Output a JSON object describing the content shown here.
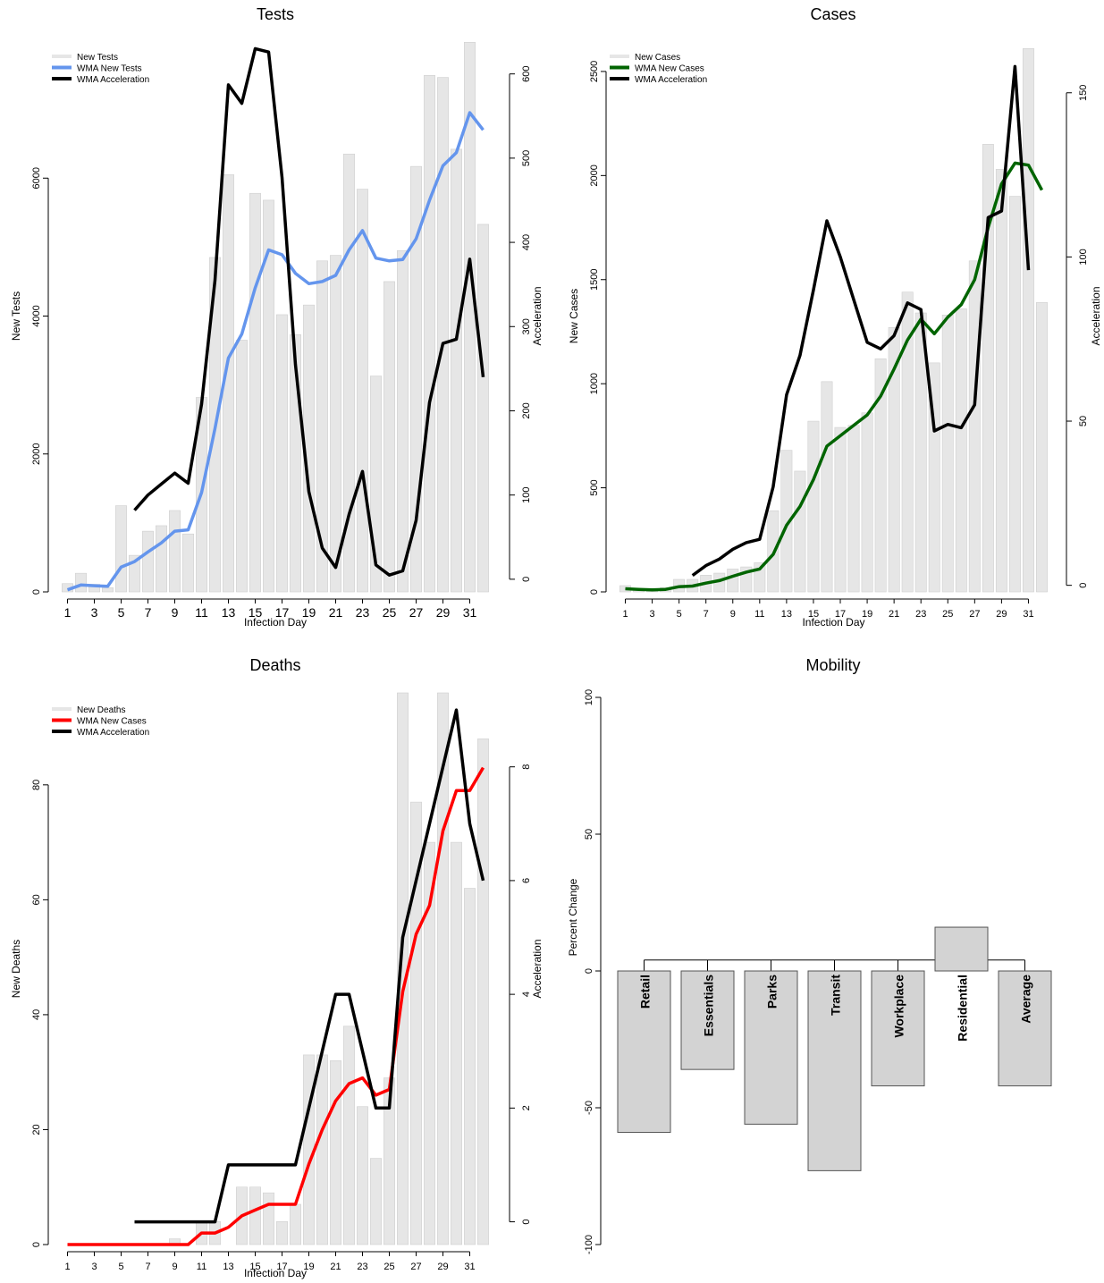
{
  "chart_data": [
    {
      "type": "bar",
      "title": "Tests",
      "xlabel": "Infection Day",
      "ylabel": "New Tests",
      "ylabel2": "Acceleration",
      "x": [
        1,
        2,
        3,
        4,
        5,
        6,
        7,
        8,
        9,
        10,
        11,
        12,
        13,
        14,
        15,
        16,
        17,
        18,
        19,
        20,
        21,
        22,
        23,
        24,
        25,
        26,
        27,
        28,
        29,
        30,
        31,
        32
      ],
      "x_ticks": [
        "1",
        "3",
        "5",
        "7",
        "9",
        "11",
        "13",
        "15",
        "17",
        "19",
        "21",
        "23",
        "25",
        "27",
        "29",
        "31"
      ],
      "y_ticks": [
        "0",
        "2000",
        "4000",
        "6000"
      ],
      "y2_ticks": [
        "0",
        "100",
        "200",
        "300",
        "400",
        "500",
        "600"
      ],
      "ylim": [
        0,
        8000
      ],
      "y2lim": [
        -15,
        640
      ],
      "legend": [
        "New Tests",
        "WMA New Tests",
        "WMA Acceleration"
      ],
      "legend_position": "top-left",
      "series": [
        {
          "name": "New Tests",
          "kind": "bar",
          "axis": "left",
          "color": "#e6e6e6",
          "values": [
            120,
            270,
            110,
            60,
            1250,
            530,
            880,
            960,
            1180,
            840,
            2820,
            4850,
            6050,
            3650,
            5780,
            5680,
            4020,
            3730,
            4160,
            4800,
            4880,
            6350,
            5840,
            3130,
            4500,
            4950,
            6170,
            7490,
            7460,
            6420,
            7970,
            5330
          ]
        },
        {
          "name": "WMA New Tests",
          "kind": "line",
          "axis": "left",
          "color": "#6495ed",
          "values": [
            30,
            100,
            90,
            80,
            360,
            440,
            580,
            710,
            880,
            900,
            1440,
            2370,
            3390,
            3740,
            4410,
            4960,
            4890,
            4620,
            4470,
            4500,
            4590,
            4960,
            5240,
            4840,
            4800,
            4820,
            5120,
            5680,
            6180,
            6370,
            6950,
            6700
          ]
        },
        {
          "name": "WMA Acceleration",
          "kind": "line",
          "axis": "right",
          "color": "#000000",
          "values": [
            null,
            null,
            null,
            null,
            null,
            82,
            100,
            113,
            126,
            114,
            208,
            355,
            587,
            565,
            630,
            626,
            477,
            255,
            104,
            37,
            14,
            77,
            128,
            17,
            5,
            10,
            70,
            210,
            280,
            285,
            380,
            240
          ]
        }
      ]
    },
    {
      "type": "bar",
      "title": "Cases",
      "xlabel": "Infection Day",
      "ylabel": "New Cases",
      "ylabel2": "Acceleration",
      "x": [
        1,
        2,
        3,
        4,
        5,
        6,
        7,
        8,
        9,
        10,
        11,
        12,
        13,
        14,
        15,
        16,
        17,
        18,
        19,
        20,
        21,
        22,
        23,
        24,
        25,
        26,
        27,
        28,
        29,
        30,
        31,
        32
      ],
      "x_ticks": [
        "1",
        "3",
        "5",
        "7",
        "9",
        "11",
        "13",
        "15",
        "17",
        "19",
        "21",
        "23",
        "25",
        "27",
        "29",
        "31"
      ],
      "y_ticks": [
        "0",
        "500",
        "1000",
        "1500",
        "2000",
        "2500"
      ],
      "y2_ticks": [
        "0",
        "50",
        "100",
        "150"
      ],
      "ylim": [
        0,
        2650
      ],
      "y2lim": [
        -2,
        166
      ],
      "legend": [
        "New Cases",
        "WMA New Cases",
        "WMA Acceleration"
      ],
      "legend_position": "top-left",
      "series": [
        {
          "name": "New Cases",
          "kind": "bar",
          "axis": "left",
          "color": "#e6e6e6",
          "values": [
            30,
            10,
            10,
            20,
            60,
            60,
            80,
            90,
            110,
            120,
            140,
            390,
            680,
            580,
            820,
            1010,
            790,
            800,
            860,
            1120,
            1270,
            1440,
            1340,
            1100,
            1330,
            1360,
            1590,
            2150,
            2030,
            1900,
            2610,
            1390
          ]
        },
        {
          "name": "WMA New Cases",
          "kind": "line",
          "axis": "left",
          "color": "#006400",
          "values": [
            15,
            12,
            10,
            12,
            25,
            28,
            42,
            54,
            75,
            95,
            110,
            180,
            320,
            410,
            540,
            700,
            750,
            800,
            850,
            940,
            1070,
            1210,
            1310,
            1240,
            1320,
            1380,
            1500,
            1750,
            1960,
            2060,
            2050,
            1930
          ]
        },
        {
          "name": "WMA Acceleration",
          "kind": "line",
          "axis": "right",
          "color": "#000000",
          "values": [
            null,
            null,
            null,
            null,
            null,
            3,
            6,
            8,
            11,
            13,
            14,
            30,
            58,
            70,
            90,
            111,
            100,
            87,
            74,
            72,
            76,
            86,
            84,
            47,
            49,
            48,
            55,
            112,
            114,
            158,
            96,
            null
          ]
        }
      ]
    },
    {
      "type": "bar",
      "title": "Deaths",
      "xlabel": "Infection Day",
      "ylabel": "New Deaths",
      "ylabel2": "Acceleration",
      "x": [
        1,
        2,
        3,
        4,
        5,
        6,
        7,
        8,
        9,
        10,
        11,
        12,
        13,
        14,
        15,
        16,
        17,
        18,
        19,
        20,
        21,
        22,
        23,
        24,
        25,
        26,
        27,
        28,
        29,
        30,
        31,
        32
      ],
      "x_ticks": [
        "1",
        "3",
        "5",
        "7",
        "9",
        "11",
        "13",
        "15",
        "17",
        "19",
        "21",
        "23",
        "25",
        "27",
        "29",
        "31"
      ],
      "y_ticks": [
        "0",
        "20",
        "40",
        "60",
        "80"
      ],
      "y2_ticks": [
        "0",
        "2",
        "4",
        "6",
        "8"
      ],
      "ylim": [
        0,
        96
      ],
      "y2lim": [
        -0.4,
        9.3
      ],
      "legend": [
        "New Deaths",
        "WMA New Cases",
        "WMA Acceleration"
      ],
      "legend_position": "top-left",
      "series": [
        {
          "name": "New Deaths",
          "kind": "bar",
          "axis": "left",
          "color": "#e6e6e6",
          "values": [
            0,
            0,
            0,
            0,
            0,
            0,
            0,
            0,
            1,
            0,
            4,
            4,
            0,
            10,
            10,
            9,
            4,
            7,
            33,
            33,
            32,
            38,
            24,
            15,
            29,
            96,
            77,
            70,
            96,
            70,
            62,
            88
          ]
        },
        {
          "name": "WMA New Cases",
          "kind": "line",
          "axis": "left",
          "color": "#ff0000",
          "values": [
            0,
            0,
            0,
            0,
            0,
            0,
            0,
            0,
            0,
            0,
            2,
            2,
            3,
            5,
            6,
            7,
            7,
            7,
            14,
            20,
            25,
            28,
            29,
            26,
            27,
            44,
            54,
            59,
            72,
            79,
            79,
            83
          ]
        },
        {
          "name": "WMA Acceleration",
          "kind": "line",
          "axis": "right",
          "color": "#000000",
          "values": [
            null,
            null,
            null,
            null,
            null,
            0,
            0,
            0,
            0,
            0,
            0,
            0,
            1,
            1,
            1,
            1,
            1,
            1,
            2,
            3,
            4,
            4,
            3,
            2,
            2,
            5,
            6,
            7,
            8,
            9,
            7,
            6
          ]
        }
      ]
    },
    {
      "type": "bar",
      "title": "Mobility",
      "ylabel": "Percent Change",
      "y_ticks": [
        "100",
        "50",
        "0",
        "-50",
        "-100"
      ],
      "ylim": [
        -100,
        100
      ],
      "categories": [
        "Retail",
        "Essentials",
        "Parks",
        "Transit",
        "Workplace",
        "Residential",
        "Average"
      ],
      "values": [
        -59,
        -36,
        -56,
        -73,
        -42,
        16,
        -42
      ],
      "color": "#d3d3d3"
    }
  ]
}
